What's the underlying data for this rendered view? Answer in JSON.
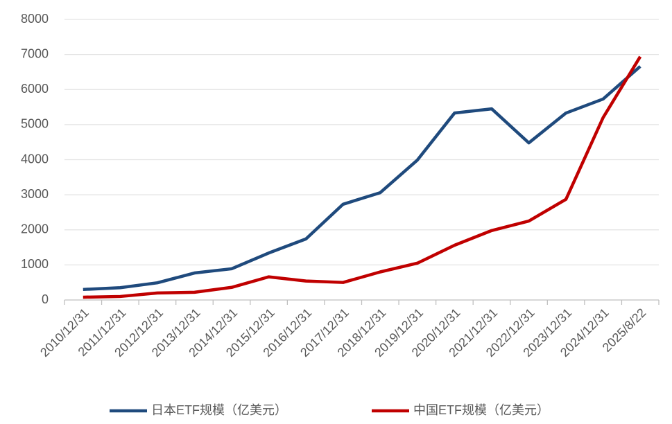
{
  "chart_data": {
    "type": "line",
    "categories": [
      "2010/12/31",
      "2011/12/31",
      "2012/12/31",
      "2013/12/31",
      "2014/12/31",
      "2015/12/31",
      "2016/12/31",
      "2017/12/31",
      "2018/12/31",
      "2019/12/31",
      "2020/12/31",
      "2021/12/31",
      "2022/12/31",
      "2023/12/31",
      "2024/12/31",
      "2025/8/22"
    ],
    "series": [
      {
        "name": "日本ETF规模（亿美元）",
        "color": "#1f4a7d",
        "values": [
          300,
          350,
          490,
          770,
          890,
          1340,
          1740,
          2730,
          3060,
          3990,
          5330,
          5450,
          4480,
          5330,
          5730,
          6660
        ]
      },
      {
        "name": "中国ETF规模（亿美元）",
        "color": "#c00000",
        "values": [
          80,
          100,
          200,
          220,
          360,
          660,
          540,
          500,
          800,
          1050,
          1560,
          1980,
          2250,
          2870,
          5200,
          6940
        ]
      }
    ],
    "ylim": [
      0,
      8000
    ],
    "yticks": [
      0,
      1000,
      2000,
      3000,
      4000,
      5000,
      6000,
      7000,
      8000
    ],
    "grid": true,
    "legend": "bottom"
  }
}
